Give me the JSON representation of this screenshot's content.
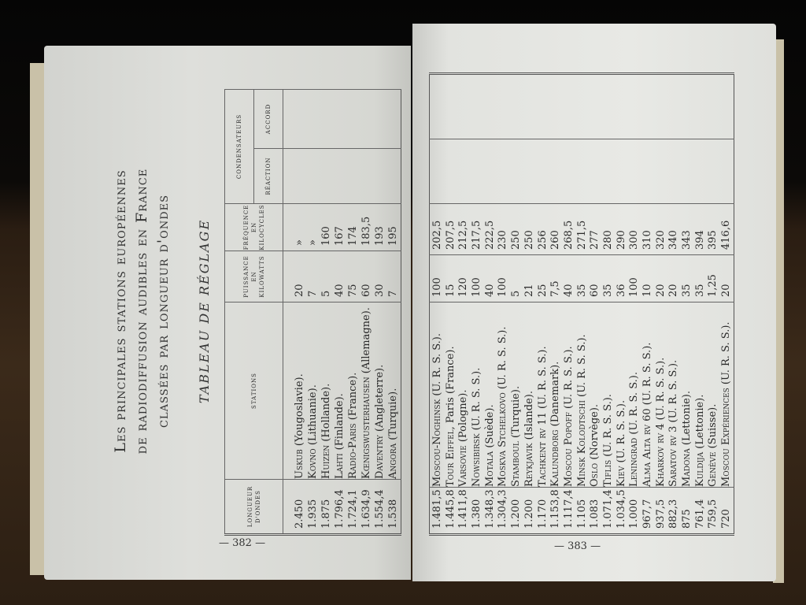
{
  "left_page": {
    "title_lines": [
      "Les principales stations européennes",
      "de radiodiffusion audibles en France",
      "classées par longueur d'ondes"
    ],
    "subtitle": "TABLEAU DE RÉGLAGE",
    "headers": {
      "wavelength": "LONGUEUR D'ONDES",
      "stations": "STATIONS",
      "power": "PUISSANCE EN KILOWATTS",
      "frequency": "FRÉQUENCE EN KILOCYCLES",
      "condensers": "CONDENSATEURS",
      "reaction": "RÉACTION",
      "tuning": "ACCORD"
    },
    "rows": [
      {
        "wave": "2.450",
        "name": "Uskub",
        "detail": "(Yougoslavie).",
        "kw": "20",
        "khz": "»"
      },
      {
        "wave": "1.935",
        "name": "Kovno",
        "detail": "(Lithuanie).",
        "kw": "7",
        "khz": "»"
      },
      {
        "wave": "1.875",
        "name": "Huizen",
        "detail": "(Hollande).",
        "kw": "5",
        "khz": "160"
      },
      {
        "wave": "1.796,4",
        "name": "Lahti",
        "detail": "(Finlande).",
        "kw": "40",
        "khz": "167"
      },
      {
        "wave": "1.724,1",
        "name": "Radio-Paris",
        "detail": "(France).",
        "kw": "75",
        "khz": "174"
      },
      {
        "wave": "1.634,9",
        "name": "Kœnigswusterhausen",
        "detail": "(Allemagne).",
        "kw": "60",
        "khz": "183,5"
      },
      {
        "wave": "1.554,4",
        "name": "Daventry",
        "detail": "(Angleterre).",
        "kw": "30",
        "khz": "193"
      },
      {
        "wave": "1.538",
        "name": "Angora",
        "detail": "(Turquie).",
        "kw": "7",
        "khz": "195"
      }
    ],
    "page_number": "— 382 —"
  },
  "right_page": {
    "rows": [
      {
        "wave": "1.481,5",
        "name": "Moscou-Noghinsk",
        "detail": "(U. R. S. S.).",
        "kw": "100",
        "khz": "202,5"
      },
      {
        "wave": "1.445,8",
        "name": "Tour Eiffel,",
        "detail": "Paris (France).",
        "kw": "15",
        "khz": "207,5"
      },
      {
        "wave": "1.411,8",
        "name": "Varsovie",
        "detail": "(Pologne).",
        "kw": "120",
        "khz": "212,5"
      },
      {
        "wave": "1.380",
        "name": "Nowsibirsk",
        "detail": "(U. R. S. S.).",
        "kw": "100",
        "khz": "217,5"
      },
      {
        "wave": "1.348,3",
        "name": "Motala",
        "detail": "(Suède).",
        "kw": "40",
        "khz": "222,5"
      },
      {
        "wave": "1.304,3",
        "name": "Moskva Stchelkovo",
        "detail": "(U. R. S. S.).",
        "kw": "100",
        "khz": "230"
      },
      {
        "wave": "1.200",
        "name": "Stamboul",
        "detail": "(Turquie).",
        "kw": "5",
        "khz": "250"
      },
      {
        "wave": "1.200",
        "name": "Reykjavik",
        "detail": "(Islande).",
        "kw": "21",
        "khz": "250"
      },
      {
        "wave": "1.170",
        "name": "Tachkent rv 11",
        "detail": "(U. R. S. S.).",
        "kw": "25",
        "khz": "256"
      },
      {
        "wave": "1.153,8",
        "name": "Kalundborg",
        "detail": "(Danemark).",
        "kw": "7,5",
        "khz": "260"
      },
      {
        "wave": "1.117,4",
        "name": "Moscou Popoff",
        "detail": "(U. R. S. S.).",
        "kw": "40",
        "khz": "268,5"
      },
      {
        "wave": "1.105",
        "name": "Minsk Kolodtschi",
        "detail": "(U. R. S. S.).",
        "kw": "35",
        "khz": "271,5"
      },
      {
        "wave": "1.083",
        "name": "Oslo",
        "detail": "(Norvège).",
        "kw": "60",
        "khz": "277"
      },
      {
        "wave": "1.071,4",
        "name": "Tiflis",
        "detail": "(U. R. S. S.).",
        "kw": "35",
        "khz": "280"
      },
      {
        "wave": "1.034,5",
        "name": "Kiev",
        "detail": "(U. R. S. S.).",
        "kw": "36",
        "khz": "290"
      },
      {
        "wave": "1.000",
        "name": "Leningrad",
        "detail": "(U. R. S. S.).",
        "kw": "100",
        "khz": "300"
      },
      {
        "wave": "967,7",
        "name": "Alma Alta rv 60",
        "detail": "(U. R. S. S.).",
        "kw": "10",
        "khz": "310"
      },
      {
        "wave": "937,5",
        "name": "Kharkov rv 4",
        "detail": "(U. R. S. S.).",
        "kw": "20",
        "khz": "320"
      },
      {
        "wave": "882,3",
        "name": "Saratov rv 3",
        "detail": "(U. R. S. S.).",
        "kw": "20",
        "khz": "340"
      },
      {
        "wave": "875",
        "name": "Madona",
        "detail": "(Lettonie).",
        "kw": "35",
        "khz": "343"
      },
      {
        "wave": "761,4",
        "name": "Kuldija",
        "detail": "(Lettonie).",
        "kw": "35",
        "khz": "394"
      },
      {
        "wave": "759,5",
        "name": "Genève",
        "detail": "(Suisse).",
        "kw": "1,25",
        "khz": "395"
      },
      {
        "wave": "720",
        "name": "Moscou Expériences",
        "detail": "(U. R. S. S.).",
        "kw": "20",
        "khz": "416,6"
      }
    ],
    "page_number": "— 383 —"
  }
}
